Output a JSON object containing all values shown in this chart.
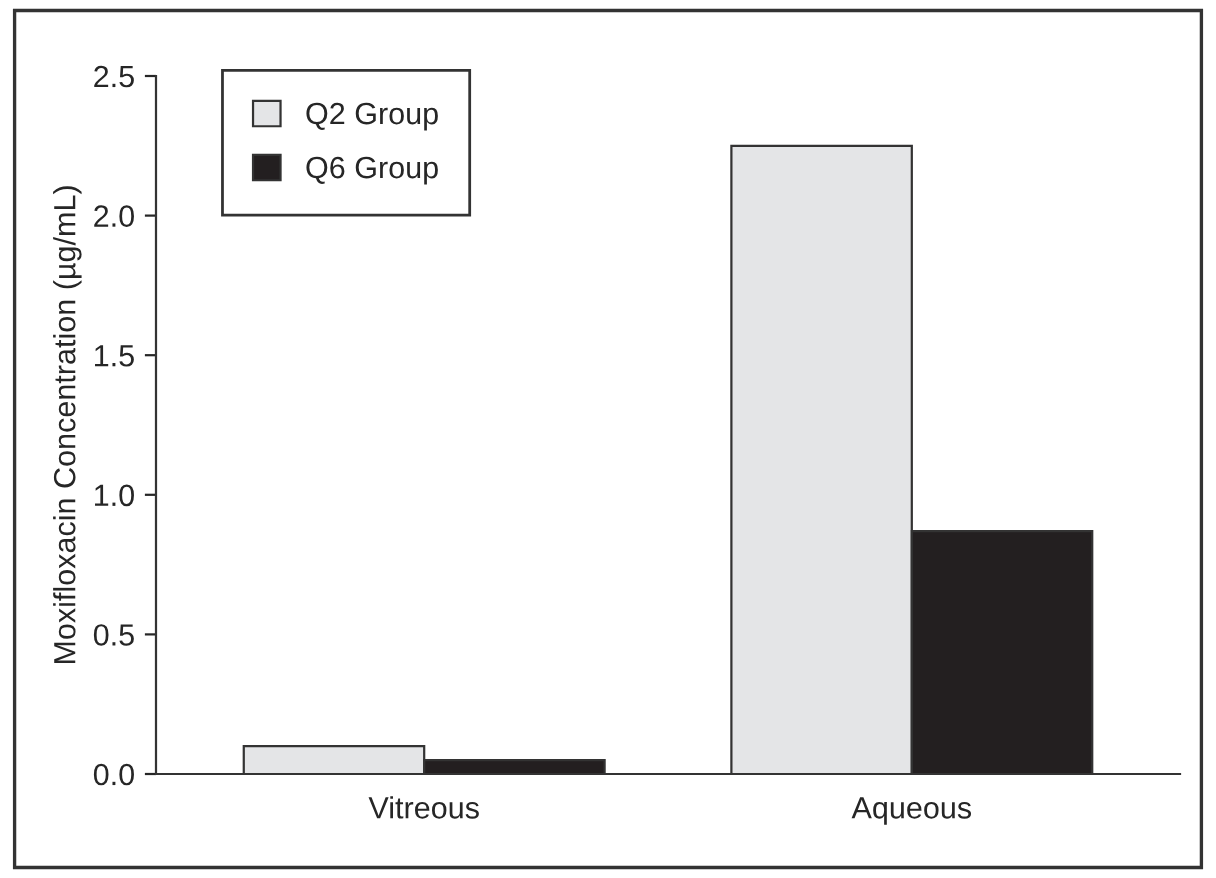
{
  "chart_data": {
    "type": "bar",
    "ylabel": "Moxifloxacin Concentration (µg/mL)",
    "categories": [
      "Vitreous",
      "Aqueous"
    ],
    "series": [
      {
        "name": "Q2 Group",
        "color": "#e4e5e7",
        "values": [
          0.1,
          2.25
        ]
      },
      {
        "name": "Q6 Group",
        "color": "#231f20",
        "values": [
          0.05,
          0.87
        ]
      }
    ],
    "ylim": [
      0,
      2.5
    ],
    "yticks": [
      {
        "value": 0,
        "label": "0.0"
      },
      {
        "value": 0.5,
        "label": "0.5"
      },
      {
        "value": 1,
        "label": "1.0"
      },
      {
        "value": 1.5,
        "label": "1.5"
      },
      {
        "value": 2,
        "label": "2.0"
      },
      {
        "value": 2.5,
        "label": "2.5"
      }
    ],
    "grid": false,
    "legend": "top left"
  }
}
